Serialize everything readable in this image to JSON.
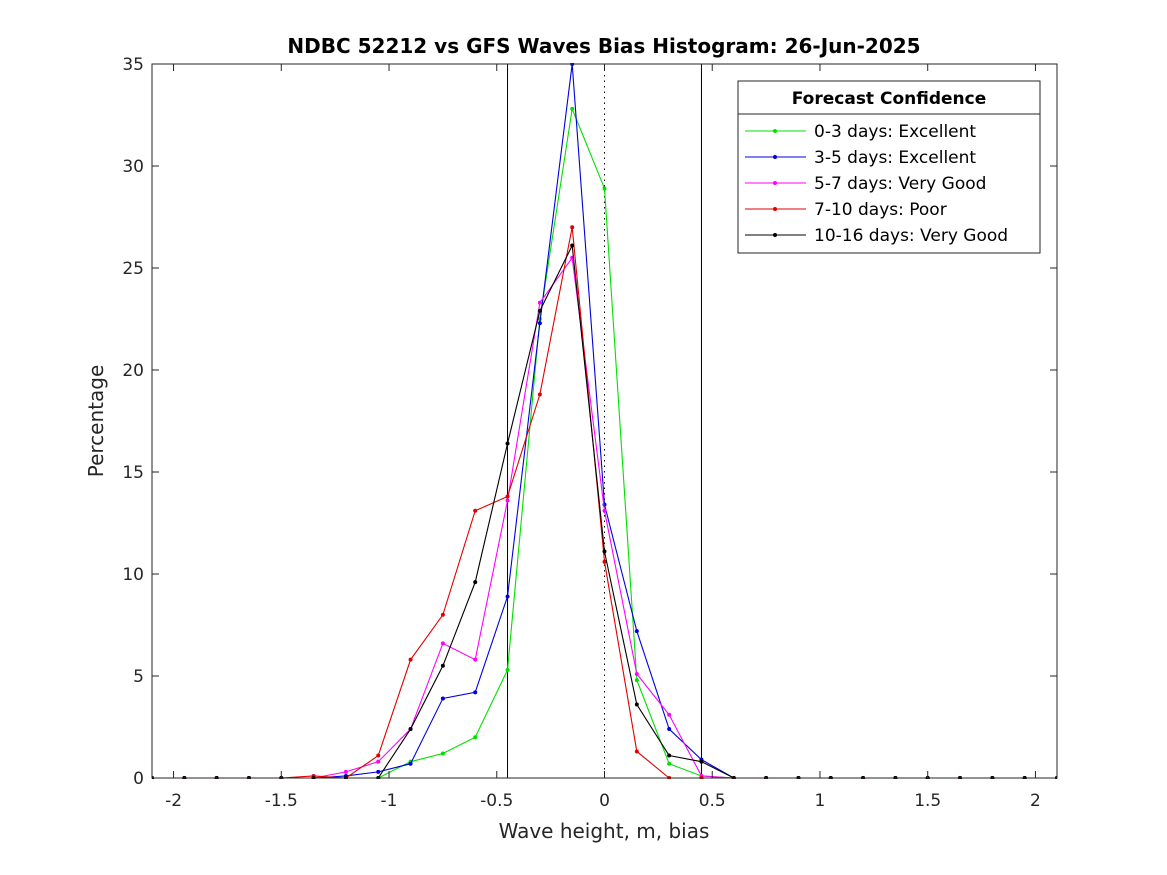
{
  "chart_data": {
    "type": "line",
    "title": "NDBC 52212 vs GFS Waves Bias Histogram: 26-Jun-2025",
    "xlabel": "Wave height, m, bias",
    "ylabel": "Percentage",
    "xlim": [
      -2.1,
      2.1
    ],
    "ylim": [
      0,
      35
    ],
    "xticks": [
      -2,
      -1.5,
      -1,
      -0.5,
      0,
      0.5,
      1,
      1.5,
      2
    ],
    "xtick_labels": [
      "-2",
      "-1.5",
      "-1",
      "-0.5",
      "0",
      "0.5",
      "1",
      "1.5",
      "2"
    ],
    "yticks": [
      0,
      5,
      10,
      15,
      20,
      25,
      30,
      35
    ],
    "ytick_labels": [
      "0",
      "5",
      "10",
      "15",
      "20",
      "25",
      "30",
      "35"
    ],
    "grid": false,
    "legend": {
      "title": "Forecast Confidence",
      "placement": "top-right"
    },
    "reference_lines": [
      {
        "x": -0.45,
        "style": "solid"
      },
      {
        "x": 0,
        "style": "dotted"
      },
      {
        "x": 0.45,
        "style": "solid"
      }
    ],
    "x": [
      -2.1,
      -1.95,
      -1.8,
      -1.65,
      -1.5,
      -1.35,
      -1.2,
      -1.05,
      -0.9,
      -0.75,
      -0.6,
      -0.45,
      -0.3,
      -0.15,
      0,
      0.15,
      0.3,
      0.45,
      0.6,
      0.75,
      0.9,
      1.05,
      1.2,
      1.35,
      1.5,
      1.65,
      1.8,
      1.95,
      2.1
    ],
    "series": [
      {
        "name": "0-3 days: Excellent",
        "color": "#00e000",
        "values": [
          0,
          0,
          0,
          0,
          0,
          0,
          0,
          0,
          0.8,
          1.2,
          2.0,
          5.3,
          22.5,
          32.8,
          28.9,
          4.8,
          0.7,
          0.1,
          0,
          0,
          0,
          0,
          0,
          0,
          0,
          0,
          0,
          0,
          0
        ]
      },
      {
        "name": "3-5 days: Excellent",
        "color": "#0000e0",
        "values": [
          0,
          0,
          0,
          0,
          0,
          0,
          0.1,
          0.3,
          0.7,
          3.9,
          4.2,
          8.9,
          22.3,
          35.0,
          13.4,
          7.2,
          2.4,
          0.9,
          0,
          0,
          0,
          0,
          0,
          0,
          0,
          0,
          0,
          0,
          0
        ]
      },
      {
        "name": "5-7 days: Very Good",
        "color": "#ff00ff",
        "values": [
          0,
          0,
          0,
          0,
          0,
          0,
          0.3,
          0.8,
          2.4,
          6.6,
          5.8,
          13.6,
          23.3,
          25.5,
          13.1,
          5.1,
          3.1,
          0.1,
          0,
          0,
          0,
          0,
          0,
          0,
          0,
          0,
          0,
          0,
          0
        ]
      },
      {
        "name": "7-10 days: Poor",
        "color": "#e00000",
        "values": [
          0,
          0,
          0,
          0,
          0,
          0.1,
          0,
          1.1,
          5.8,
          8.0,
          13.1,
          13.8,
          18.8,
          27.0,
          10.6,
          1.3,
          0,
          0,
          0,
          0,
          0,
          0,
          0,
          0,
          0,
          0,
          0,
          0,
          0
        ]
      },
      {
        "name": "10-16 days: Very Good",
        "color": "#000000",
        "values": [
          0,
          0,
          0,
          0,
          0,
          0,
          0,
          0,
          2.4,
          5.5,
          9.6,
          16.4,
          22.9,
          26.1,
          11.1,
          3.6,
          1.1,
          0.8,
          0,
          0,
          0,
          0,
          0,
          0,
          0,
          0,
          0,
          0,
          0
        ]
      }
    ]
  }
}
